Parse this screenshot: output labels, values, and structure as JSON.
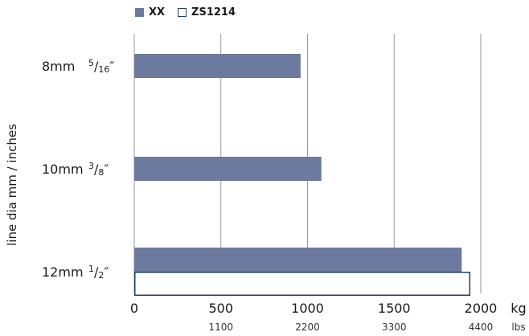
{
  "chart_data": {
    "type": "bar",
    "orientation": "horizontal",
    "categories": [
      "8mm",
      "10mm",
      "12mm"
    ],
    "category_inch_labels": [
      {
        "num": "5",
        "den": "16",
        "mark": "″"
      },
      {
        "num": "3",
        "den": "8",
        "mark": "″"
      },
      {
        "num": "1",
        "den": "2",
        "mark": "″"
      }
    ],
    "series": [
      {
        "name": "XX",
        "values": [
          960,
          1080,
          1890
        ],
        "color": "#6b7a9e"
      },
      {
        "name": "ZS1214",
        "values": [
          null,
          null,
          1940
        ],
        "color": "#ffffff",
        "stroke": "#1f3f5f"
      }
    ],
    "xlim": [
      0,
      2000
    ],
    "x_ticks": [
      "0",
      "500",
      "1000",
      "1500",
      "2000"
    ],
    "x_unit": "kg",
    "x_secondary_ticks": [
      "1100",
      "2200",
      "3300",
      "4400"
    ],
    "x_secondary_unit": "lbs",
    "ylabel": "line dia mm / inches",
    "grid": true,
    "legend_position": "top-left"
  }
}
